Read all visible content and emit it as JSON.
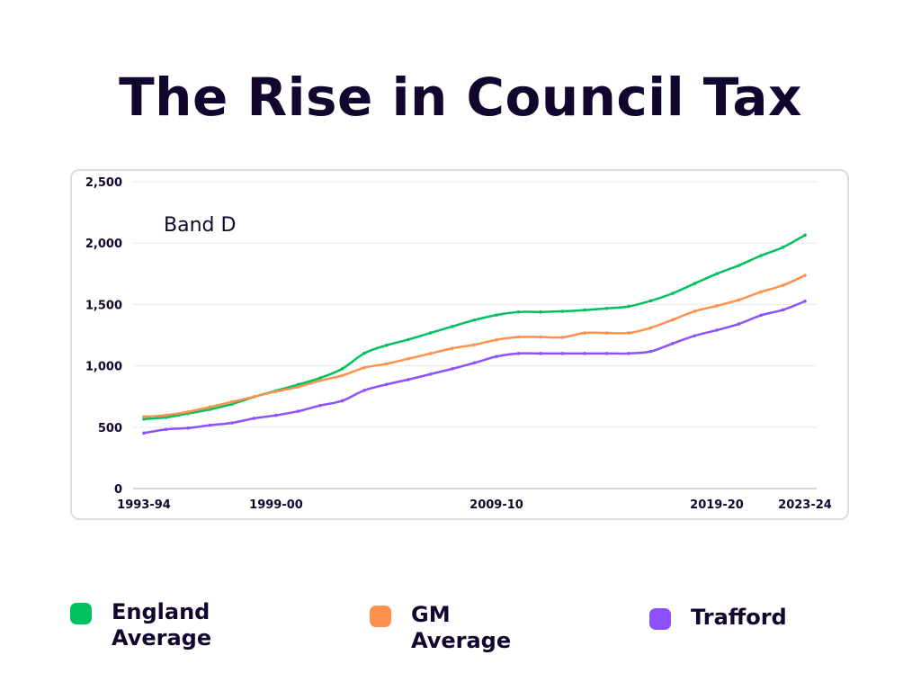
{
  "page": {
    "title": "The Rise in Council Tax"
  },
  "chart_data": {
    "type": "line",
    "title": "The Rise in Council Tax",
    "annotation": "Band D",
    "xlabel": "",
    "ylabel": "",
    "ylim": [
      0,
      2500
    ],
    "yticks": [
      0,
      500,
      1000,
      1500,
      2000,
      2500
    ],
    "ytick_labels": [
      "0",
      "500",
      "1,000",
      "1,500",
      "2,000",
      "2,500"
    ],
    "x": [
      "1993-94",
      "1994-95",
      "1995-96",
      "1996-97",
      "1997-98",
      "1998-99",
      "1999-00",
      "2000-01",
      "2001-02",
      "2002-03",
      "2003-04",
      "2004-05",
      "2005-06",
      "2006-07",
      "2007-08",
      "2008-09",
      "2009-10",
      "2010-11",
      "2011-12",
      "2012-13",
      "2013-14",
      "2014-15",
      "2015-16",
      "2016-17",
      "2017-18",
      "2018-19",
      "2019-20",
      "2020-21",
      "2021-22",
      "2022-23",
      "2023-24"
    ],
    "xtick_labels": [
      {
        "index": 0,
        "label": "1993-94"
      },
      {
        "index": 6,
        "label": "1999-00"
      },
      {
        "index": 16,
        "label": "2009-10"
      },
      {
        "index": 26,
        "label": "2019-20"
      },
      {
        "index": 30,
        "label": "2023-24"
      }
    ],
    "grid": true,
    "legend_position": "bottom",
    "series": [
      {
        "name": "England Average",
        "color": "#00c060",
        "values": [
          566,
          580,
          611,
          645,
          688,
          747,
          798,
          847,
          901,
          976,
          1102,
          1167,
          1214,
          1268,
          1321,
          1373,
          1414,
          1439,
          1439,
          1444,
          1454,
          1468,
          1484,
          1530,
          1591,
          1671,
          1750,
          1818,
          1898,
          1966,
          2065
        ]
      },
      {
        "name": "GM Average",
        "color": "#ff914d",
        "values": [
          585,
          598,
          625,
          665,
          706,
          748,
          792,
          828,
          880,
          921,
          985,
          1016,
          1058,
          1100,
          1143,
          1172,
          1212,
          1235,
          1235,
          1232,
          1268,
          1268,
          1268,
          1310,
          1376,
          1445,
          1489,
          1537,
          1602,
          1656,
          1737
        ]
      },
      {
        "name": "Trafford",
        "color": "#8c52ff",
        "values": [
          452,
          482,
          493,
          516,
          535,
          572,
          597,
          630,
          677,
          715,
          800,
          848,
          888,
          932,
          976,
          1024,
          1076,
          1101,
          1101,
          1101,
          1101,
          1101,
          1101,
          1117,
          1182,
          1245,
          1291,
          1341,
          1412,
          1456,
          1526
        ]
      }
    ]
  },
  "legend": {
    "items": [
      {
        "label_line1": "England",
        "label_line2": "Average",
        "color": "#00c060"
      },
      {
        "label_line1": "GM",
        "label_line2": "Average",
        "color": "#ff914d"
      },
      {
        "label_line1": "Trafford",
        "label_line2": "",
        "color": "#8c52ff"
      }
    ]
  }
}
